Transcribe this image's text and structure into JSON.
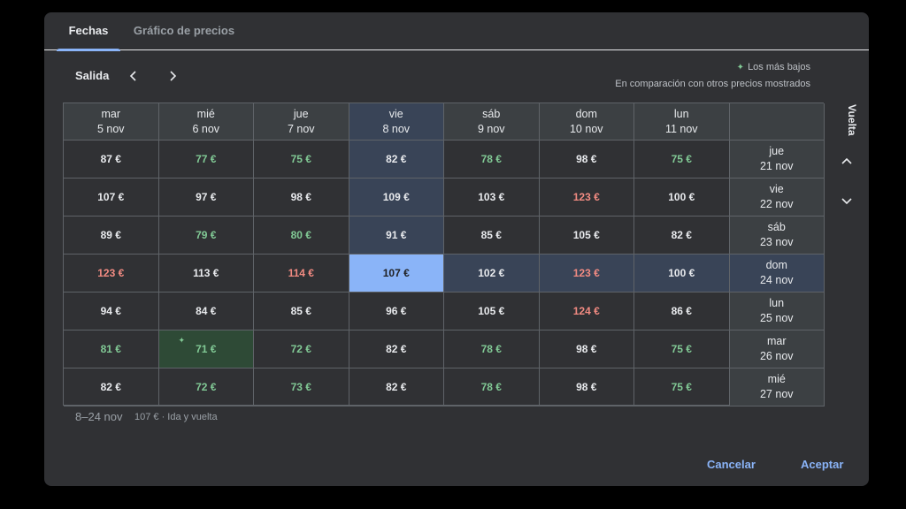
{
  "tabs": [
    {
      "label": "Fechas",
      "active": true
    },
    {
      "label": "Gráfico de precios",
      "active": false
    }
  ],
  "salida": {
    "label": "Salida"
  },
  "legend": {
    "lowest": "Los más bajos",
    "comparison": "En comparación con otros precios mostrados"
  },
  "vuelta_label": "Vuelta",
  "columns": [
    {
      "day": "mar",
      "date": "5 nov"
    },
    {
      "day": "mié",
      "date": "6 nov"
    },
    {
      "day": "jue",
      "date": "7 nov"
    },
    {
      "day": "vie",
      "date": "8 nov"
    },
    {
      "day": "sáb",
      "date": "9 nov"
    },
    {
      "day": "dom",
      "date": "10 nov"
    },
    {
      "day": "lun",
      "date": "11 nov"
    }
  ],
  "rows": [
    {
      "day": "jue",
      "date": "21 nov"
    },
    {
      "day": "vie",
      "date": "22 nov"
    },
    {
      "day": "sáb",
      "date": "23 nov"
    },
    {
      "day": "dom",
      "date": "24 nov"
    },
    {
      "day": "lun",
      "date": "25 nov"
    },
    {
      "day": "mar",
      "date": "26 nov"
    },
    {
      "day": "mié",
      "date": "27 nov"
    }
  ],
  "prices": [
    [
      {
        "v": "87 €",
        "t": "n"
      },
      {
        "v": "77 €",
        "t": "c"
      },
      {
        "v": "75 €",
        "t": "c"
      },
      {
        "v": "82 €",
        "t": "n"
      },
      {
        "v": "78 €",
        "t": "c"
      },
      {
        "v": "98 €",
        "t": "n"
      },
      {
        "v": "75 €",
        "t": "c"
      }
    ],
    [
      {
        "v": "107 €",
        "t": "n"
      },
      {
        "v": "97 €",
        "t": "n"
      },
      {
        "v": "98 €",
        "t": "n"
      },
      {
        "v": "109 €",
        "t": "n"
      },
      {
        "v": "103 €",
        "t": "n"
      },
      {
        "v": "123 €",
        "t": "e"
      },
      {
        "v": "100 €",
        "t": "n"
      }
    ],
    [
      {
        "v": "89 €",
        "t": "n"
      },
      {
        "v": "79 €",
        "t": "c"
      },
      {
        "v": "80 €",
        "t": "c"
      },
      {
        "v": "91 €",
        "t": "n"
      },
      {
        "v": "85 €",
        "t": "n"
      },
      {
        "v": "105 €",
        "t": "n"
      },
      {
        "v": "82 €",
        "t": "n"
      }
    ],
    [
      {
        "v": "123 €",
        "t": "e"
      },
      {
        "v": "113 €",
        "t": "n"
      },
      {
        "v": "114 €",
        "t": "e"
      },
      {
        "v": "107 €",
        "t": "n"
      },
      {
        "v": "102 €",
        "t": "n"
      },
      {
        "v": "123 €",
        "t": "e"
      },
      {
        "v": "100 €",
        "t": "n"
      }
    ],
    [
      {
        "v": "94 €",
        "t": "n"
      },
      {
        "v": "84 €",
        "t": "n"
      },
      {
        "v": "85 €",
        "t": "n"
      },
      {
        "v": "96 €",
        "t": "n"
      },
      {
        "v": "105 €",
        "t": "n"
      },
      {
        "v": "124 €",
        "t": "e"
      },
      {
        "v": "86 €",
        "t": "n"
      }
    ],
    [
      {
        "v": "81 €",
        "t": "c"
      },
      {
        "v": "71 €",
        "t": "c"
      },
      {
        "v": "72 €",
        "t": "c"
      },
      {
        "v": "82 €",
        "t": "n"
      },
      {
        "v": "78 €",
        "t": "c"
      },
      {
        "v": "98 €",
        "t": "n"
      },
      {
        "v": "75 €",
        "t": "c"
      }
    ],
    [
      {
        "v": "82 €",
        "t": "n"
      },
      {
        "v": "72 €",
        "t": "c"
      },
      {
        "v": "73 €",
        "t": "c"
      },
      {
        "v": "82 €",
        "t": "n"
      },
      {
        "v": "78 €",
        "t": "c"
      },
      {
        "v": "98 €",
        "t": "n"
      },
      {
        "v": "75 €",
        "t": "c"
      }
    ]
  ],
  "selected": {
    "row": 3,
    "col": 3
  },
  "lowest_cell": {
    "row": 5,
    "col": 1
  },
  "summary": {
    "dates": "8–24 nov",
    "price": "107 € · Ida y vuelta"
  },
  "buttons": {
    "cancel": "Cancelar",
    "accept": "Aceptar"
  },
  "colors": {
    "accent": "#8ab4f8",
    "cheap": "#81c995",
    "expensive": "#f28b82",
    "highlight": "#394457"
  }
}
